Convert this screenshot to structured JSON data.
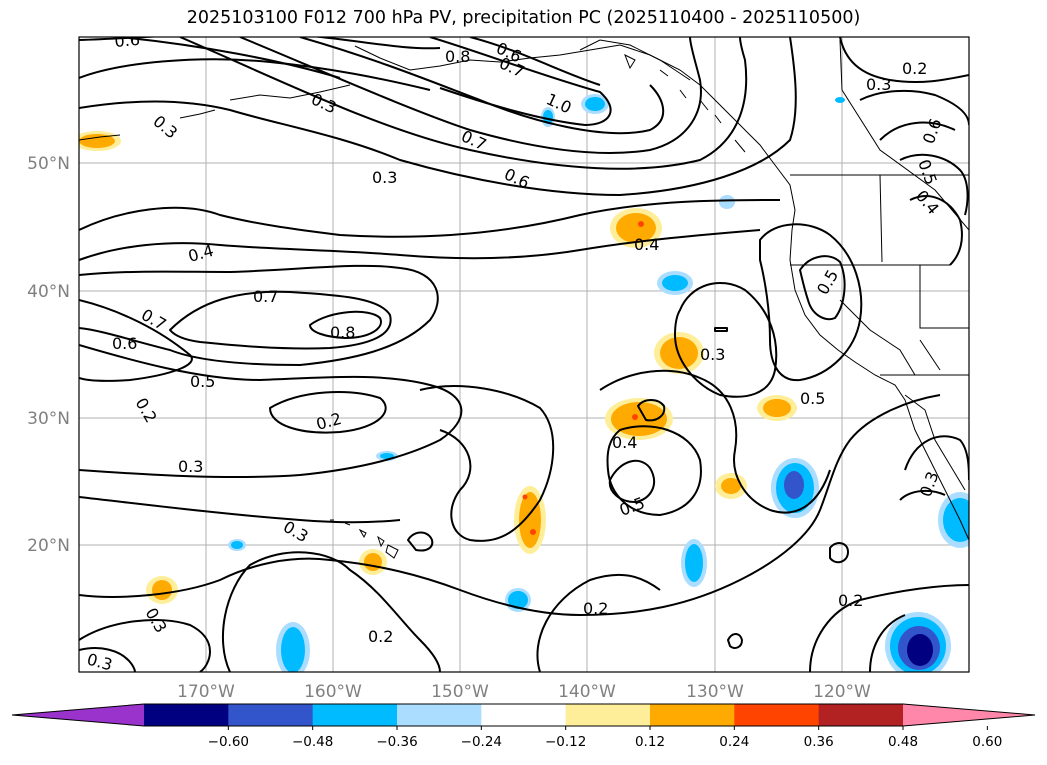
{
  "title": "2025103100 F012 700 hPa PV, precipitation PC (2025110400 - 2025110500)",
  "map": {
    "lat_ticks": [
      "50°N",
      "40°N",
      "30°N",
      "20°N"
    ],
    "lon_ticks": [
      "170°W",
      "160°W",
      "150°W",
      "140°W",
      "130°W",
      "120°W"
    ]
  },
  "contour_labels": [
    {
      "text": "0.6"
    },
    {
      "text": "0.8"
    },
    {
      "text": "0.6"
    },
    {
      "text": "0.7"
    },
    {
      "text": "1.0"
    },
    {
      "text": "0.3"
    },
    {
      "text": "0.7"
    },
    {
      "text": "0.6"
    },
    {
      "text": "0.3"
    },
    {
      "text": "0.2"
    },
    {
      "text": "0.3"
    },
    {
      "text": "0.6"
    },
    {
      "text": "0.5"
    },
    {
      "text": "0.4"
    },
    {
      "text": "0.3"
    },
    {
      "text": "0.4"
    },
    {
      "text": "0.4"
    },
    {
      "text": "0.7"
    },
    {
      "text": "0.7"
    },
    {
      "text": "0.8"
    },
    {
      "text": "0.6"
    },
    {
      "text": "0.5"
    },
    {
      "text": "0.5"
    },
    {
      "text": "0.3"
    },
    {
      "text": "0.2"
    },
    {
      "text": "0.2"
    },
    {
      "text": "0.5"
    },
    {
      "text": "0.4"
    },
    {
      "text": "0.3"
    },
    {
      "text": "0.3"
    },
    {
      "text": "0.5"
    },
    {
      "text": "0.3"
    },
    {
      "text": "0.3"
    },
    {
      "text": "0.2"
    },
    {
      "text": "0.2"
    },
    {
      "text": "0.2"
    },
    {
      "text": "0.3"
    }
  ],
  "colorbar": {
    "colors": [
      "#9933cc",
      "#000080",
      "#3355cc",
      "#00bbff",
      "#aaddff",
      "#ffffff",
      "#ffee99",
      "#ffaa00",
      "#ff4400",
      "#b22222",
      "#ff88aa"
    ],
    "labels": [
      "−0.60",
      "−0.48",
      "−0.36",
      "−0.24",
      "−0.12",
      "0.12",
      "0.24",
      "0.36",
      "0.48",
      "0.60"
    ]
  }
}
